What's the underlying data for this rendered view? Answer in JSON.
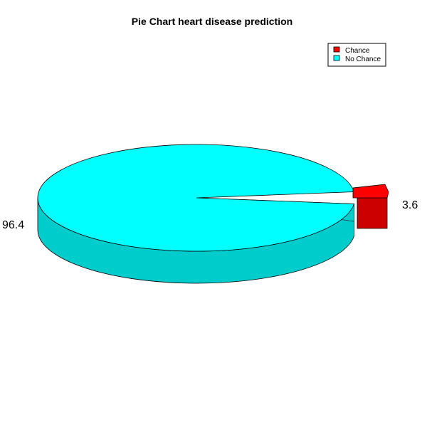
{
  "chart_data": {
    "type": "pie",
    "title": "Pie Chart heart disease prediction",
    "three_d": true,
    "labels": [
      "Chance",
      "No Chance"
    ],
    "values": [
      3.6,
      96.4
    ],
    "value_labels": [
      "3.6",
      "96.4"
    ],
    "colors": [
      "#ff0000",
      "#00ffff"
    ],
    "legend": {
      "placement": "top-right",
      "entries": [
        "Chance",
        "No Chance"
      ]
    }
  }
}
